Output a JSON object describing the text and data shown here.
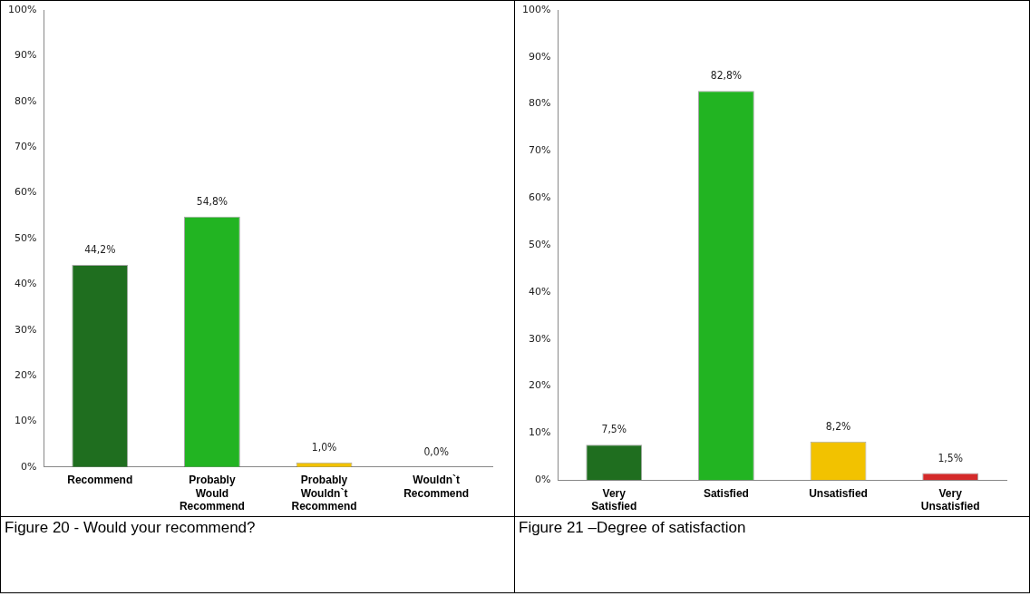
{
  "chart_data": [
    {
      "type": "bar",
      "title": "Figure 20 - Would your recommend?",
      "categories": [
        "Recommend",
        "Probably Would Recommend",
        "Probably Wouldn`t Recommend",
        "Wouldn`t Recommend"
      ],
      "values": [
        44.2,
        54.8,
        1.0,
        0.0
      ],
      "colors": [
        "#1f6e1f",
        "#22b422",
        "#f2c200",
        "#d42a2a"
      ],
      "value_labels": [
        "44,2%",
        "54,8%",
        "1,0%",
        "0,0%"
      ],
      "ylim": [
        0,
        100
      ],
      "yticks": [
        {
          "value": 0,
          "label": "0%"
        },
        {
          "value": 10,
          "label": "10%"
        },
        {
          "value": 20,
          "label": "20%"
        },
        {
          "value": 30,
          "label": "30%"
        },
        {
          "value": 40,
          "label": "40%"
        },
        {
          "value": 50,
          "label": "50%"
        },
        {
          "value": 60,
          "label": "60%"
        },
        {
          "value": 70,
          "label": "70%"
        },
        {
          "value": 80,
          "label": "80%"
        },
        {
          "value": 90,
          "label": "90%"
        },
        {
          "value": 100,
          "label": "100%"
        }
      ],
      "grid": false,
      "legend": false
    },
    {
      "type": "bar",
      "title": "Figure 21 –Degree of satisfaction",
      "categories": [
        "Very Satisfied",
        "Satisfied",
        "Unsatisfied",
        "Very Unsatisfied"
      ],
      "values": [
        7.5,
        82.8,
        8.2,
        1.5
      ],
      "colors": [
        "#1f6e1f",
        "#22b422",
        "#f2c200",
        "#d42a2a"
      ],
      "value_labels": [
        "7,5%",
        "82,8%",
        "8,2%",
        "1,5%"
      ],
      "ylim": [
        0,
        100
      ],
      "yticks": [
        {
          "value": 0,
          "label": "0%"
        },
        {
          "value": 10,
          "label": "10%"
        },
        {
          "value": 20,
          "label": "20%"
        },
        {
          "value": 30,
          "label": "30%"
        },
        {
          "value": 40,
          "label": "40%"
        },
        {
          "value": 50,
          "label": "50%"
        },
        {
          "value": 60,
          "label": "60%"
        },
        {
          "value": 70,
          "label": "70%"
        },
        {
          "value": 80,
          "label": "80%"
        },
        {
          "value": 90,
          "label": "90%"
        },
        {
          "value": 100,
          "label": "100%"
        }
      ],
      "grid": false,
      "legend": false
    }
  ]
}
